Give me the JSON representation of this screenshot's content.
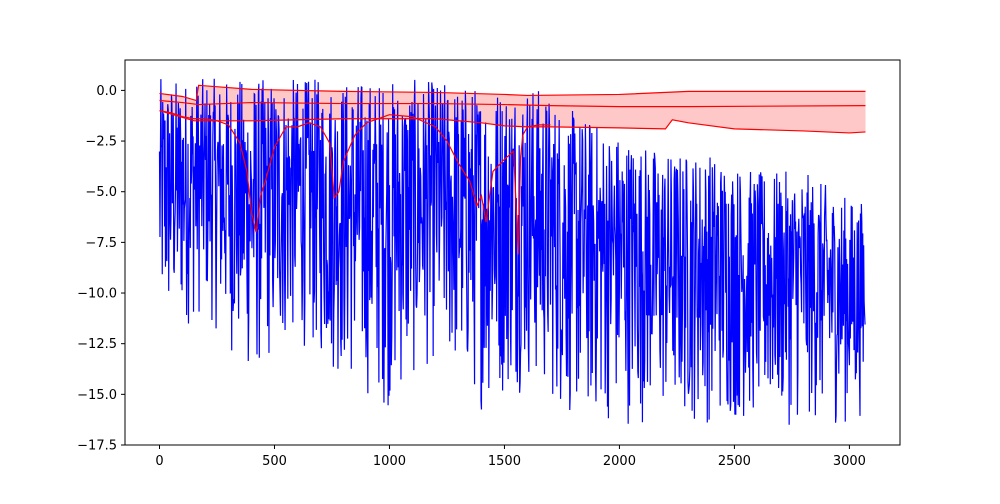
{
  "chart_data": {
    "type": "line",
    "title": "",
    "xlabel": "",
    "ylabel": "",
    "xlim": [
      -150,
      3220
    ],
    "ylim": [
      -17.5,
      1.5
    ],
    "grid": false,
    "legend": "none",
    "x_ticks": [
      0,
      500,
      1000,
      1500,
      2000,
      2500,
      3000
    ],
    "x_tick_labels": [
      "0",
      "500",
      "1000",
      "1500",
      "2000",
      "2500",
      "3000"
    ],
    "y_ticks": [
      0.0,
      -2.5,
      -5.0,
      -7.5,
      -10.0,
      -12.5,
      -15.0,
      -17.5
    ],
    "y_tick_labels": [
      "0.0",
      "−2.5",
      "−5.0",
      "−7.5",
      "−10.0",
      "−12.5",
      "−15.0",
      "−17.5"
    ],
    "n_points": 3070,
    "colors": {
      "noisy": "#0000ff",
      "band_line": "#ff0000",
      "band_fill": "#ffc8c8"
    },
    "series": [
      {
        "color": "#0000ff",
        "description": "noisy signal; per-segment min/max envelope in data units",
        "x": [
          0,
          200,
          400,
          600,
          800,
          1000,
          1200,
          1400,
          1600,
          1800,
          2000,
          2200,
          2400,
          2600,
          2800,
          3000,
          3070
        ],
        "upper": [
          0.6,
          0.6,
          0.6,
          0.6,
          0.6,
          0.6,
          0.5,
          0.3,
          0.6,
          -1.0,
          -2.0,
          -3.0,
          -3.0,
          -4.0,
          -4.0,
          -5.3,
          -5.5
        ],
        "lower": [
          -12.7,
          -11.2,
          -14.7,
          -12.5,
          -14.7,
          -15.9,
          -13.5,
          -15.9,
          -14.8,
          -16.6,
          -16.6,
          -16.5,
          -16.6,
          -16.6,
          -16.6,
          -16.6,
          -16.0
        ]
      },
      {
        "color": "#ff0000",
        "description": "running average",
        "x": [
          0,
          50,
          100,
          150,
          200,
          250,
          300,
          350,
          380,
          400,
          420,
          440,
          460,
          500,
          550,
          600,
          650,
          700,
          740,
          760,
          780,
          800,
          850,
          900,
          1000,
          1100,
          1200,
          1250,
          1300,
          1350,
          1380,
          1400,
          1420,
          1450,
          1500,
          1540,
          1560,
          1570,
          1580,
          1600,
          1650,
          1700
        ],
        "values": [
          -1.0,
          -1.1,
          -1.3,
          -1.4,
          -1.4,
          -1.5,
          -1.7,
          -2.6,
          -4.0,
          -6.0,
          -7.0,
          -5.2,
          -4.5,
          -2.8,
          -1.8,
          -1.8,
          -1.6,
          -1.8,
          -2.6,
          -5.3,
          -5.0,
          -3.5,
          -2.2,
          -1.6,
          -1.2,
          -1.3,
          -1.8,
          -2.5,
          -3.6,
          -4.5,
          -5.7,
          -5.2,
          -6.5,
          -4.0,
          -3.4,
          -3.0,
          -8.1,
          -3.3,
          -2.2,
          -1.8,
          -1.7,
          -1.7
        ]
      },
      {
        "color": "#ff0000",
        "description": "upper band line",
        "x": [
          0,
          100,
          160,
          170,
          400,
          800,
          1200,
          1500,
          1600,
          2000,
          2300,
          3070
        ],
        "values": [
          -0.15,
          -0.3,
          -0.5,
          0.25,
          0.05,
          -0.05,
          -0.1,
          -0.2,
          -0.25,
          -0.2,
          -0.05,
          -0.05
        ]
      },
      {
        "color": "#ff0000",
        "description": "middle band line",
        "x": [
          0,
          100,
          170,
          400,
          800,
          1200,
          1500,
          1700,
          2000,
          2300,
          3070
        ],
        "values": [
          -0.5,
          -0.6,
          -0.7,
          -0.6,
          -0.65,
          -0.65,
          -0.7,
          -0.75,
          -0.8,
          -0.8,
          -0.75
        ]
      },
      {
        "color": "#ff0000",
        "description": "lower band line",
        "x": [
          0,
          150,
          400,
          800,
          1200,
          1400,
          1500,
          1600,
          1700,
          2000,
          2200,
          2230,
          2300,
          2500,
          2800,
          3000,
          3070
        ],
        "values": [
          -1.0,
          -1.5,
          -1.5,
          -1.4,
          -1.4,
          -1.6,
          -1.75,
          -1.8,
          -1.8,
          -1.85,
          -1.9,
          -1.45,
          -1.6,
          -1.9,
          -2.0,
          -2.1,
          -2.05
        ]
      }
    ]
  }
}
